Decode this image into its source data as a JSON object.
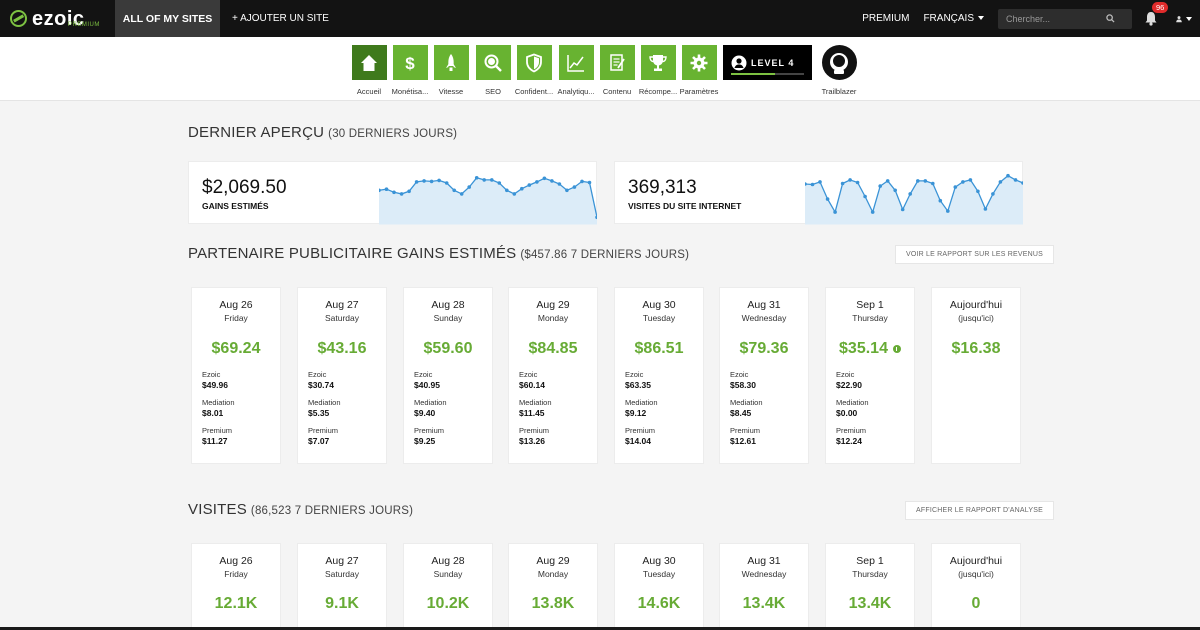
{
  "brand": {
    "name": "ezoic",
    "sub": "PREMIUM",
    "accent": "#67ab35"
  },
  "topnav": {
    "active": "ALL OF MY SITES",
    "add_site": "+ AJOUTER UN SITE",
    "premium": "PREMIUM",
    "language": "FRANÇAIS",
    "search_placeholder": "Chercher...",
    "notifications": "96"
  },
  "tools": [
    {
      "label": "Accueil",
      "icon": "home-icon",
      "active": true
    },
    {
      "label": "Monétisa...",
      "icon": "dollar-icon"
    },
    {
      "label": "Vitesse",
      "icon": "rocket-icon"
    },
    {
      "label": "SEO",
      "icon": "magnifier-icon"
    },
    {
      "label": "Confident...",
      "icon": "shield-icon"
    },
    {
      "label": "Analytiqu...",
      "icon": "chart-icon"
    },
    {
      "label": "Contenu",
      "icon": "document-icon"
    },
    {
      "label": "Récompe...",
      "icon": "trophy-icon"
    },
    {
      "label": "Paramètres",
      "icon": "gear-icon"
    }
  ],
  "level_badge": "LEVEL 4",
  "trailblazer": {
    "label": "Trailblazer",
    "icon": "astronaut-icon"
  },
  "overview": {
    "title": "DERNIER APERÇU",
    "subtitle": "(30 DERNIERS JOURS)",
    "earnings": {
      "value": "$2,069.50",
      "label": "GAINS ESTIMÉS",
      "trend": [
        62,
        64,
        58,
        55,
        60,
        78,
        80,
        79,
        81,
        76,
        62,
        55,
        68,
        86,
        82,
        82,
        76,
        62,
        55,
        65,
        72,
        78,
        85,
        80,
        74,
        62,
        68,
        79,
        77,
        10
      ]
    },
    "visits": {
      "value": "369,313",
      "label": "VISITES DU SITE INTERNET",
      "trend": [
        74,
        73,
        78,
        45,
        20,
        75,
        82,
        77,
        50,
        20,
        70,
        80,
        62,
        25,
        55,
        80,
        80,
        75,
        42,
        22,
        68,
        78,
        82,
        60,
        26,
        55,
        78,
        90,
        82,
        76
      ]
    }
  },
  "partner": {
    "title": "PARTENAIRE PUBLICITAIRE GAINS ESTIMÉS",
    "subtitle": "($457.86 7 DERNIERS JOURS)",
    "button": "VOIR LE RAPPORT SUR LES REVENUS",
    "labels": {
      "ezoic": "Ezoic",
      "mediation": "Mediation",
      "premium": "Premium"
    },
    "days": [
      {
        "date": "Aug 26",
        "dow": "Friday",
        "total": "$69.24",
        "ezoic": "$49.96",
        "mediation": "$8.01",
        "premium": "$11.27"
      },
      {
        "date": "Aug 27",
        "dow": "Saturday",
        "total": "$43.16",
        "ezoic": "$30.74",
        "mediation": "$5.35",
        "premium": "$7.07"
      },
      {
        "date": "Aug 28",
        "dow": "Sunday",
        "total": "$59.60",
        "ezoic": "$40.95",
        "mediation": "$9.40",
        "premium": "$9.25"
      },
      {
        "date": "Aug 29",
        "dow": "Monday",
        "total": "$84.85",
        "ezoic": "$60.14",
        "mediation": "$11.45",
        "premium": "$13.26"
      },
      {
        "date": "Aug 30",
        "dow": "Tuesday",
        "total": "$86.51",
        "ezoic": "$63.35",
        "mediation": "$9.12",
        "premium": "$14.04"
      },
      {
        "date": "Aug 31",
        "dow": "Wednesday",
        "total": "$79.36",
        "ezoic": "$58.30",
        "mediation": "$8.45",
        "premium": "$12.61"
      },
      {
        "date": "Sep 1",
        "dow": "Thursday",
        "total": "$35.14",
        "ezoic": "$22.90",
        "mediation": "$0.00",
        "premium": "$12.24"
      }
    ],
    "today": {
      "date": "Aujourd'hui",
      "dow": "(jusqu'ici)",
      "total": "$16.38"
    }
  },
  "visits": {
    "title": "VISITES",
    "subtitle": "(86,523 7 DERNIERS JOURS)",
    "button": "AFFICHER LE RAPPORT D'ANALYSE",
    "days": [
      {
        "date": "Aug 26",
        "dow": "Friday",
        "total": "12.1K"
      },
      {
        "date": "Aug 27",
        "dow": "Saturday",
        "total": "9.1K"
      },
      {
        "date": "Aug 28",
        "dow": "Sunday",
        "total": "10.2K"
      },
      {
        "date": "Aug 29",
        "dow": "Monday",
        "total": "13.8K"
      },
      {
        "date": "Aug 30",
        "dow": "Tuesday",
        "total": "14.6K"
      },
      {
        "date": "Aug 31",
        "dow": "Wednesday",
        "total": "13.4K"
      },
      {
        "date": "Sep 1",
        "dow": "Thursday",
        "total": "13.4K"
      }
    ],
    "today": {
      "date": "Aujourd'hui",
      "dow": "(jusqu'ici)",
      "total": "0"
    }
  }
}
